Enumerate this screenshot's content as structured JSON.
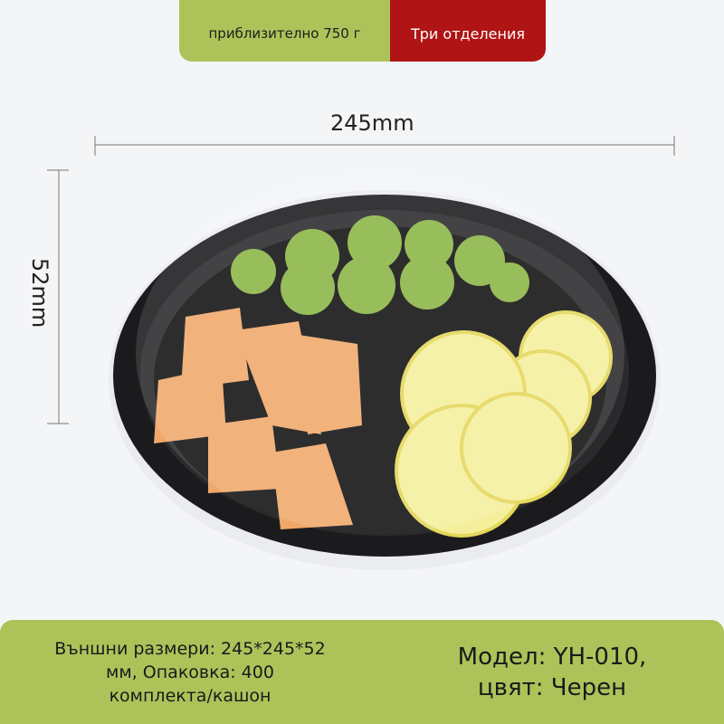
{
  "banner": {
    "weight": "приблизително 750 г",
    "compartments": "Три отделения",
    "colors": {
      "green": "#adc35a",
      "red": "#b01414"
    }
  },
  "dimensions": {
    "width": "245mm",
    "height": "52mm"
  },
  "footer": {
    "specs": [
      "Външни размери: 245*245*52",
      "мм, Опаковка: 400",
      "комплекта/кашон"
    ],
    "model": [
      "Модел: YH-010,",
      "цвят: Черен"
    ]
  }
}
